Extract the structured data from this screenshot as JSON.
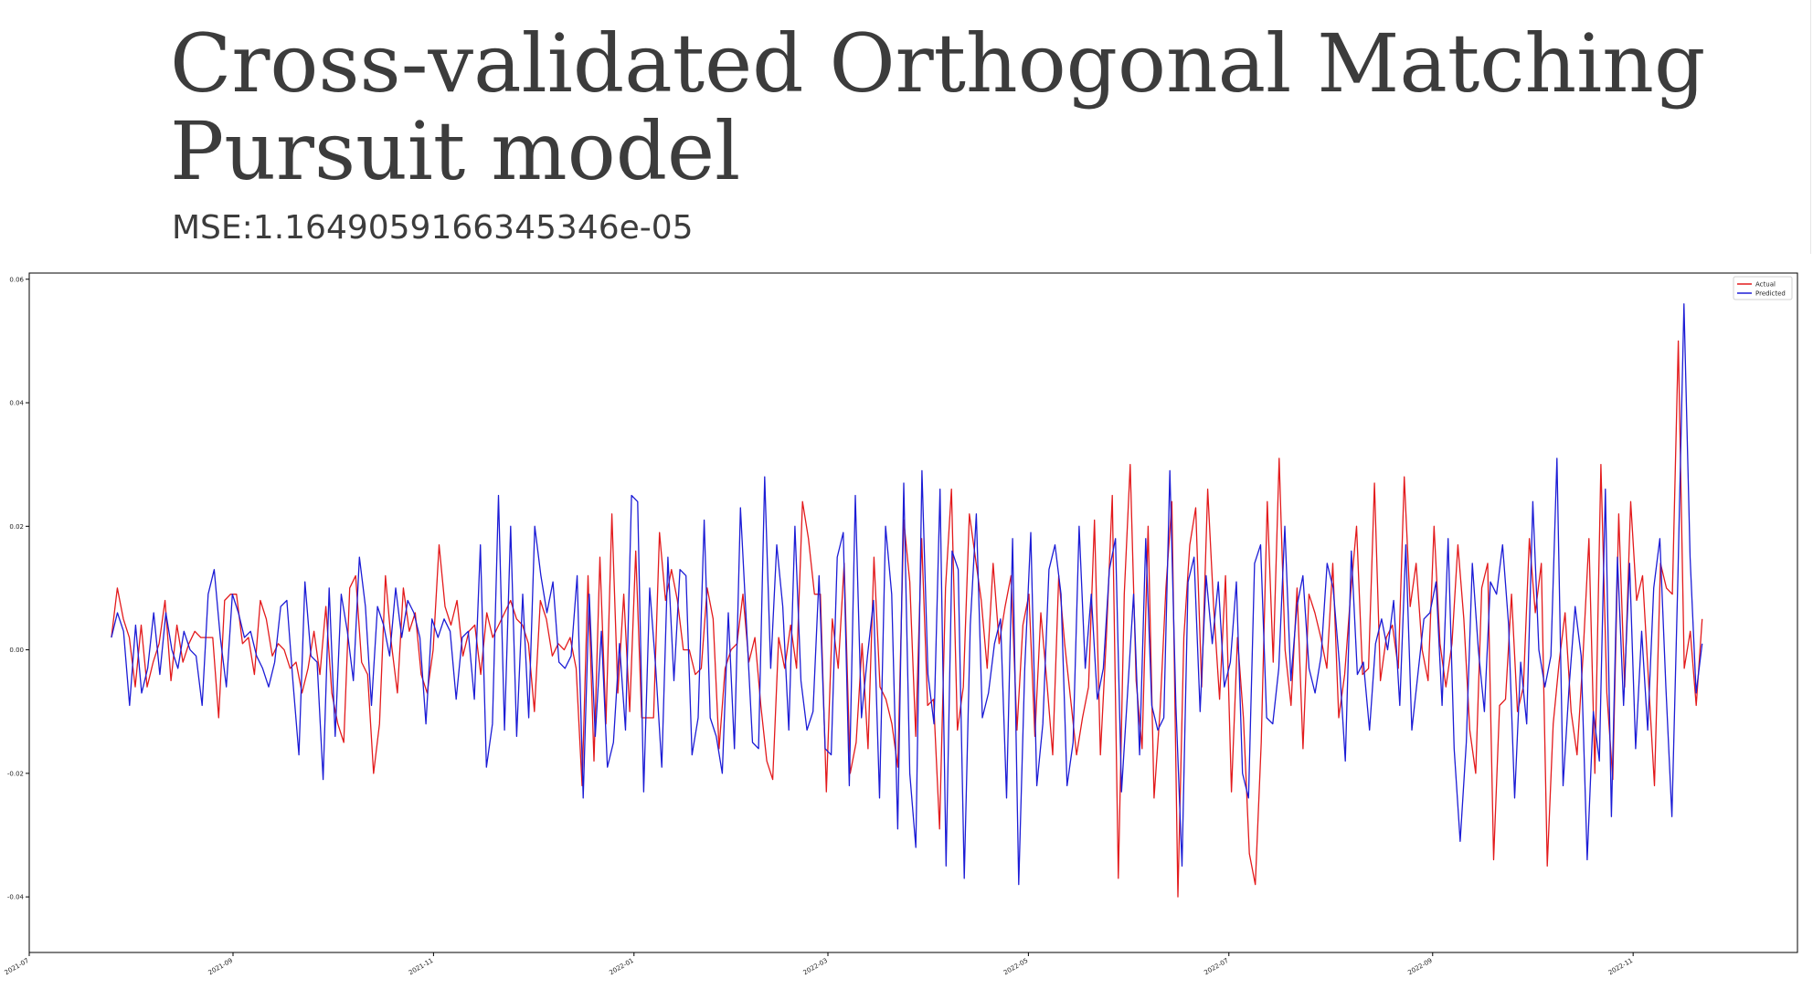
{
  "title": "Cross-validated Orthogonal Matching Pursuit model",
  "subtitle": "MSE:1.1649059166345346e-05",
  "chart_data": {
    "type": "line",
    "title": "",
    "xlabel": "",
    "ylabel": "",
    "grid": false,
    "legend_position": "top-right",
    "xlim": [
      "2021-07-01",
      "2022-12-21"
    ],
    "ylim": [
      -0.049,
      0.061
    ],
    "x_ticks": [
      "2021-07",
      "2021-09",
      "2021-11",
      "2022-01",
      "2022-03",
      "2022-05",
      "2022-07",
      "2022-09",
      "2022-11"
    ],
    "y_ticks": [
      -0.04,
      -0.02,
      0.0,
      0.02,
      0.04,
      0.06
    ],
    "y_tick_labels": [
      "-0.04",
      "-0.02",
      "0.00",
      "0.02",
      "0.04",
      "0.06"
    ],
    "x_start": "2021-07-26",
    "x_end": "2022-11-22",
    "series": [
      {
        "name": "Actual",
        "color": "#e31a1c",
        "values": [
          0.002,
          0.01,
          0.005,
          0.002,
          -0.006,
          0.004,
          -0.006,
          -0.002,
          0.001,
          0.008,
          -0.005,
          0.004,
          -0.002,
          0.001,
          0.003,
          0.002,
          0.002,
          0.002,
          -0.011,
          0.008,
          0.009,
          0.009,
          0.001,
          0.002,
          -0.004,
          0.008,
          0.005,
          -0.001,
          0.001,
          0.0,
          -0.003,
          -0.002,
          -0.007,
          -0.003,
          0.003,
          -0.004,
          0.007,
          -0.007,
          -0.012,
          -0.015,
          0.01,
          0.012,
          -0.002,
          -0.004,
          -0.02,
          -0.012,
          0.012,
          0.001,
          -0.007,
          0.01,
          0.003,
          0.006,
          -0.004,
          -0.007,
          0.0,
          0.017,
          0.007,
          0.004,
          0.008,
          -0.001,
          0.003,
          0.004,
          -0.004,
          0.006,
          0.002,
          0.004,
          0.006,
          0.008,
          0.005,
          0.004,
          0.001,
          -0.01,
          0.008,
          0.005,
          -0.001,
          0.001,
          0.0,
          0.002,
          -0.003,
          -0.022,
          0.012,
          -0.018,
          0.015,
          -0.012,
          0.022,
          -0.007,
          0.009,
          -0.01,
          0.016,
          -0.011,
          -0.011,
          -0.011,
          0.019,
          0.008,
          0.013,
          0.008,
          0.0,
          0.0,
          -0.004,
          -0.003,
          0.01,
          0.005,
          -0.016,
          -0.003,
          0.0,
          0.001,
          0.009,
          -0.002,
          0.002,
          -0.009,
          -0.018,
          -0.021,
          0.002,
          -0.003,
          0.004,
          -0.003,
          0.024,
          0.018,
          0.009,
          0.009,
          -0.023,
          0.005,
          -0.003,
          0.014,
          -0.02,
          -0.015,
          0.001,
          -0.016,
          0.015,
          -0.006,
          -0.008,
          -0.012,
          -0.019,
          0.021,
          0.011,
          -0.014,
          0.018,
          -0.009,
          -0.008,
          -0.029,
          0.01,
          0.026,
          -0.013,
          -0.006,
          0.022,
          0.015,
          0.008,
          -0.003,
          0.014,
          0.001,
          0.007,
          0.012,
          -0.013,
          0.004,
          0.009,
          -0.014,
          0.006,
          -0.005,
          -0.017,
          0.012,
          0.001,
          -0.008,
          -0.017,
          -0.011,
          -0.006,
          0.021,
          -0.017,
          0.002,
          0.025,
          -0.037,
          0.009,
          0.03,
          -0.005,
          -0.016,
          0.02,
          -0.024,
          -0.01,
          0.01,
          0.024,
          -0.04,
          0.002,
          0.017,
          0.023,
          -0.006,
          0.026,
          0.007,
          -0.008,
          0.012,
          -0.023,
          0.002,
          -0.011,
          -0.033,
          -0.038,
          -0.015,
          0.024,
          -0.002,
          0.031,
          0.0,
          -0.009,
          0.01,
          -0.016,
          0.009,
          0.006,
          0.002,
          -0.003,
          0.014,
          -0.011,
          -0.004,
          0.009,
          0.02,
          -0.004,
          -0.003,
          0.027,
          -0.005,
          0.002,
          0.004,
          -0.003,
          0.028,
          0.007,
          0.014,
          0.0,
          -0.005,
          0.02,
          0.001,
          -0.006,
          0.001,
          0.017,
          0.005,
          -0.013,
          -0.02,
          0.01,
          0.014,
          -0.034,
          -0.009,
          -0.008,
          0.009,
          -0.01,
          -0.006,
          0.018,
          0.006,
          0.014,
          -0.035,
          -0.012,
          -0.002,
          0.006,
          -0.01,
          -0.017,
          -0.001,
          0.018,
          -0.02,
          0.03,
          -0.007,
          -0.021,
          0.022,
          -0.006,
          0.024,
          0.008,
          0.012,
          -0.005,
          -0.022,
          0.014,
          0.01,
          0.009,
          0.05,
          -0.003,
          0.003,
          -0.009,
          0.005
        ]
      },
      {
        "name": "Predicted",
        "color": "#1c1cd6",
        "values": [
          0.002,
          0.006,
          0.003,
          -0.009,
          0.004,
          -0.007,
          -0.003,
          0.006,
          -0.004,
          0.006,
          0.0,
          -0.003,
          0.003,
          0.0,
          -0.001,
          -0.009,
          0.009,
          0.013,
          0.002,
          -0.006,
          0.009,
          0.006,
          0.002,
          0.003,
          -0.001,
          -0.003,
          -0.006,
          -0.002,
          0.007,
          0.008,
          -0.005,
          -0.017,
          0.011,
          -0.001,
          -0.002,
          -0.021,
          0.01,
          -0.014,
          0.009,
          0.003,
          -0.005,
          0.015,
          0.007,
          -0.009,
          0.007,
          0.004,
          -0.001,
          0.01,
          0.002,
          0.008,
          0.006,
          0.002,
          -0.012,
          0.005,
          0.002,
          0.005,
          0.003,
          -0.008,
          0.002,
          0.003,
          -0.008,
          0.017,
          -0.019,
          -0.012,
          0.025,
          -0.013,
          0.02,
          -0.014,
          0.009,
          -0.011,
          0.02,
          0.012,
          0.006,
          0.011,
          -0.002,
          -0.003,
          -0.001,
          0.012,
          -0.024,
          0.009,
          -0.014,
          0.003,
          -0.019,
          -0.015,
          0.001,
          -0.013,
          0.025,
          0.024,
          -0.023,
          0.01,
          -0.003,
          -0.019,
          0.015,
          -0.005,
          0.013,
          0.012,
          -0.017,
          -0.011,
          0.021,
          -0.011,
          -0.014,
          -0.02,
          0.006,
          -0.016,
          0.023,
          0.004,
          -0.015,
          -0.016,
          0.028,
          -0.003,
          0.017,
          0.007,
          -0.013,
          0.02,
          -0.005,
          -0.013,
          -0.01,
          0.012,
          -0.016,
          -0.017,
          0.015,
          0.019,
          -0.022,
          0.025,
          -0.011,
          -0.001,
          0.008,
          -0.024,
          0.02,
          0.009,
          -0.029,
          0.027,
          -0.02,
          -0.032,
          0.029,
          -0.004,
          -0.012,
          0.026,
          -0.035,
          0.016,
          0.013,
          -0.037,
          0.004,
          0.022,
          -0.011,
          -0.007,
          0.001,
          0.005,
          -0.024,
          0.018,
          -0.038,
          -0.003,
          0.019,
          -0.022,
          -0.012,
          0.013,
          0.017,
          0.009,
          -0.022,
          -0.015,
          0.02,
          -0.003,
          0.009,
          -0.008,
          -0.003,
          0.013,
          0.018,
          -0.023,
          -0.007,
          0.009,
          -0.017,
          0.018,
          -0.009,
          -0.013,
          -0.011,
          0.029,
          -0.009,
          -0.035,
          0.011,
          0.015,
          -0.01,
          0.012,
          0.001,
          0.011,
          -0.006,
          -0.002,
          0.011,
          -0.02,
          -0.024,
          0.014,
          0.017,
          -0.011,
          -0.012,
          -0.003,
          0.02,
          -0.005,
          0.007,
          0.012,
          -0.003,
          -0.007,
          -0.001,
          0.014,
          0.01,
          -0.002,
          -0.018,
          0.016,
          -0.004,
          -0.002,
          -0.013,
          0.001,
          0.005,
          0.0,
          0.008,
          -0.009,
          0.017,
          -0.013,
          -0.004,
          0.005,
          0.006,
          0.011,
          -0.009,
          0.018,
          -0.016,
          -0.031,
          -0.015,
          0.014,
          0.0,
          -0.01,
          0.011,
          0.009,
          0.017,
          0.004,
          -0.024,
          -0.002,
          -0.012,
          0.024,
          0.0,
          -0.006,
          -0.001,
          0.031,
          -0.022,
          -0.006,
          0.007,
          -0.001,
          -0.034,
          -0.01,
          -0.018,
          0.026,
          -0.027,
          0.015,
          -0.009,
          0.014,
          -0.016,
          0.003,
          -0.013,
          0.01,
          0.018,
          -0.006,
          -0.027,
          0.012,
          0.056,
          0.015,
          -0.007,
          0.001
        ]
      }
    ]
  }
}
